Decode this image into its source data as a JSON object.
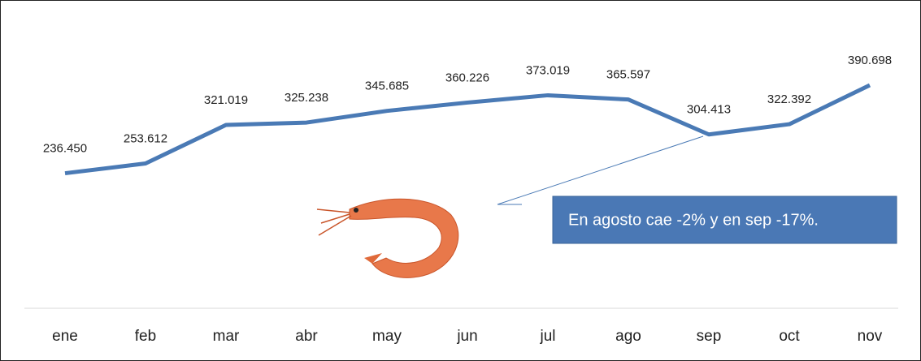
{
  "chart_data": {
    "type": "line",
    "categories": [
      "ene",
      "feb",
      "mar",
      "abr",
      "may",
      "jun",
      "jul",
      "ago",
      "sep",
      "oct",
      "nov"
    ],
    "series": [
      {
        "color": "#4a7ab5",
        "values": [
          236450,
          253612,
          321019,
          325238,
          345685,
          360226,
          373019,
          365597,
          304413,
          322392,
          390698
        ],
        "value_labels": [
          "236.450",
          "253.612",
          "321.019",
          "325.238",
          "345.685",
          "360.226",
          "373.019",
          "365.597",
          "304.413",
          "322.392",
          "390.698"
        ]
      }
    ],
    "annotation": "En agosto cae -2% y en sep -17%."
  }
}
